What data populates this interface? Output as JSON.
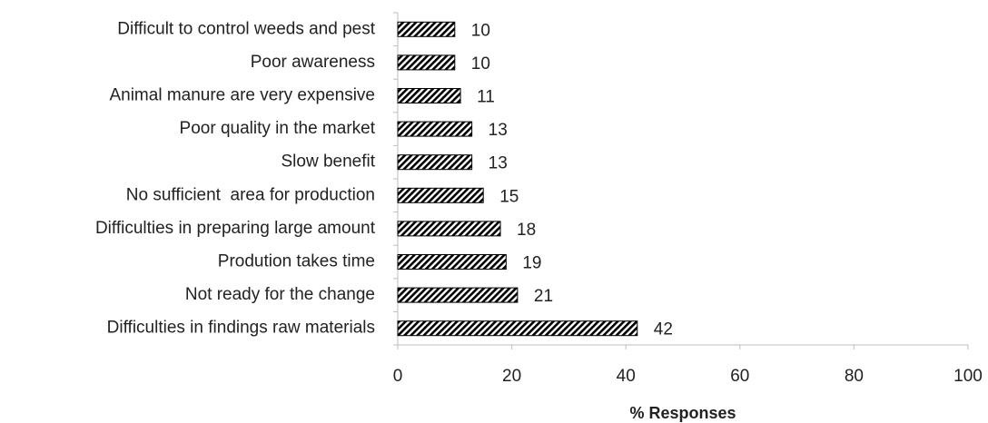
{
  "chart_data": {
    "type": "bar",
    "orientation": "horizontal",
    "categories": [
      "Difficult to control weeds and pest",
      "Poor awareness",
      "Animal manure are very expensive",
      "Poor quality in the market",
      "Slow benefit",
      "No sufficient  area for production",
      "Difficulties in preparing large amount",
      "Prodution takes time",
      "Not ready for the change",
      "Difficulties in findings raw materials"
    ],
    "values": [
      10,
      10,
      11,
      13,
      13,
      15,
      18,
      19,
      21,
      42
    ],
    "color": "#000000",
    "pattern": "diagonal-hatch",
    "xlim": [
      0,
      100
    ],
    "xticks": [
      0,
      20,
      40,
      60,
      80,
      100
    ],
    "xlabel": "% Responses",
    "grid": false
  }
}
